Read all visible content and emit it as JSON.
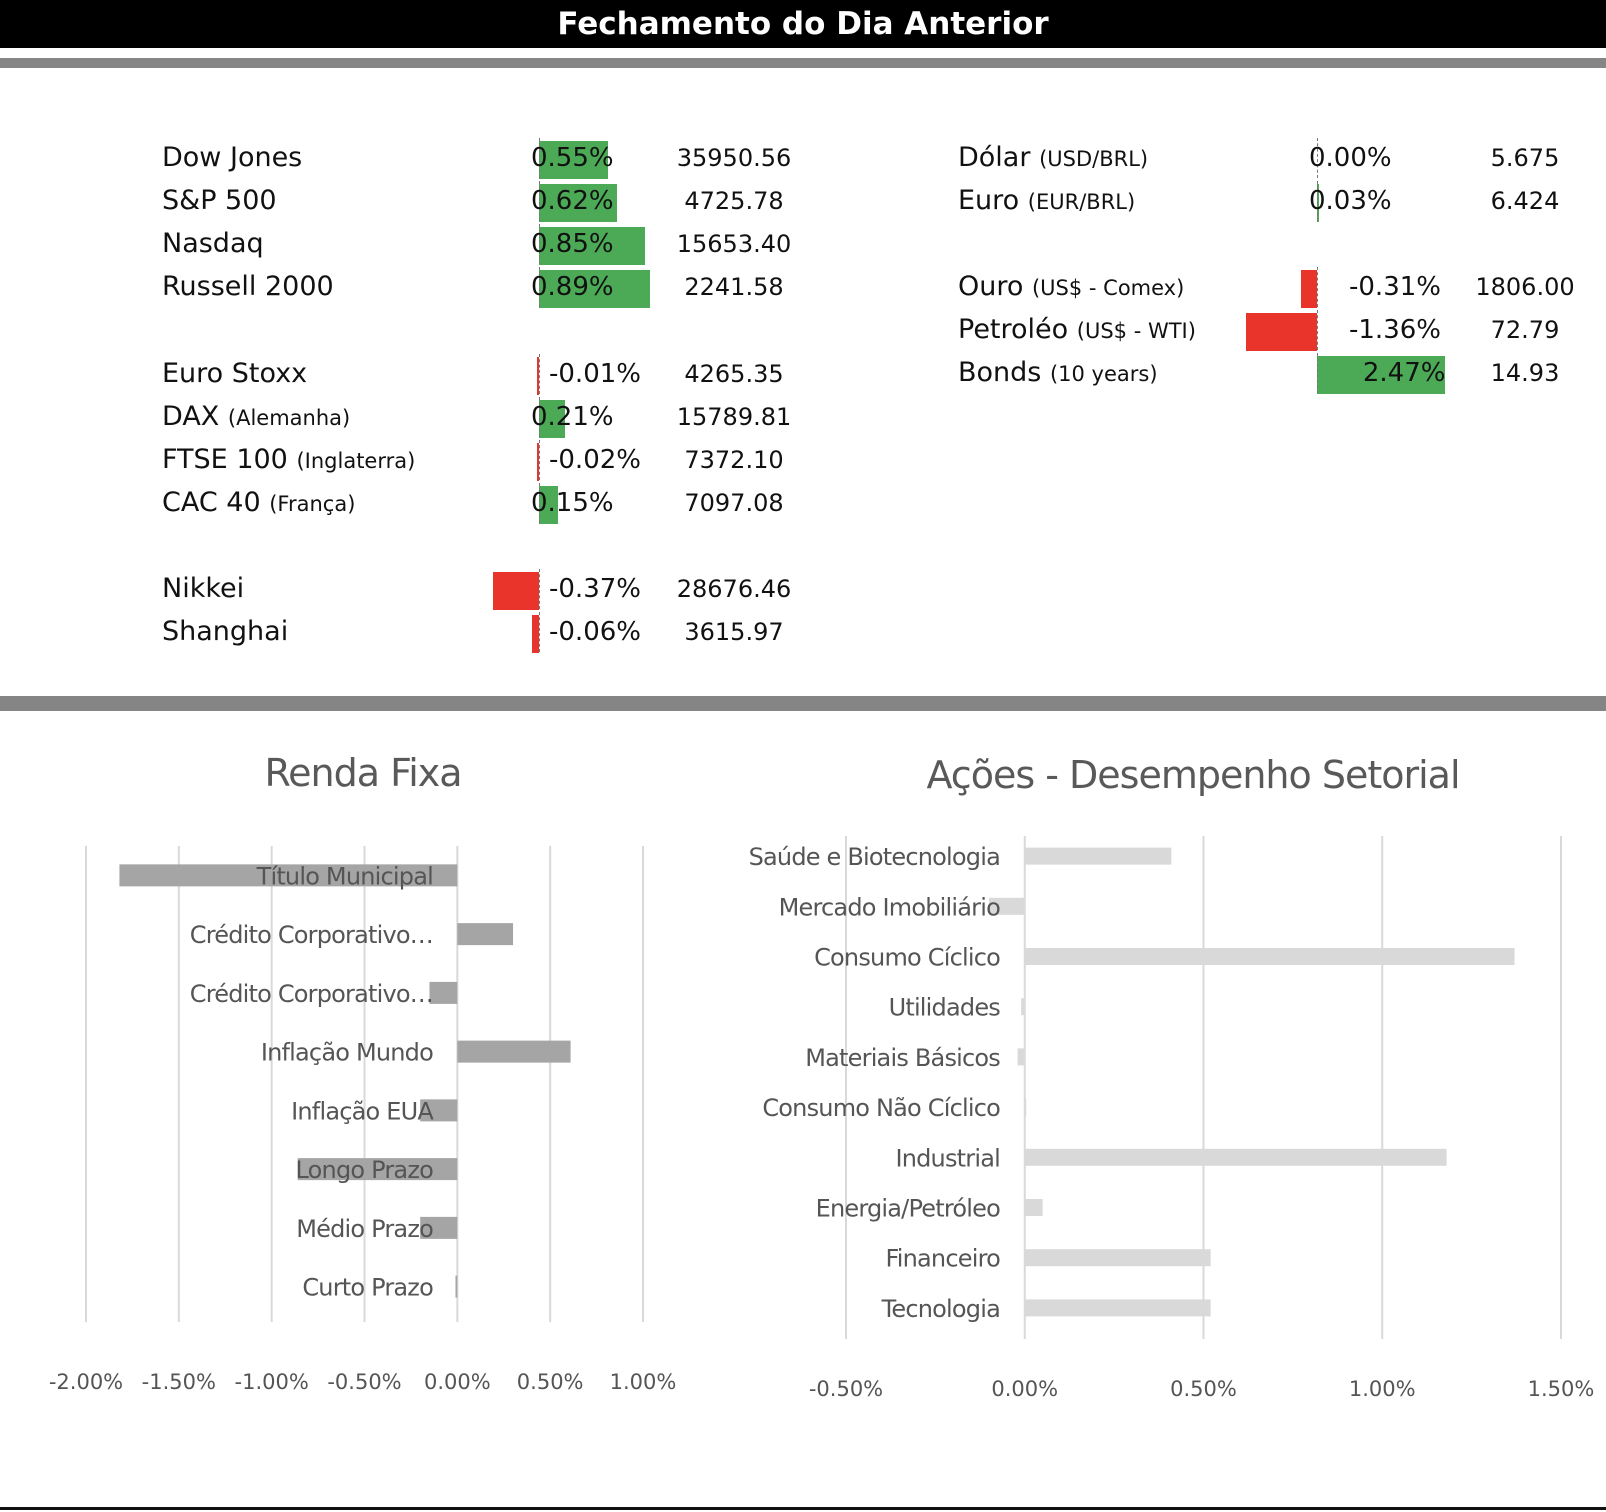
{
  "header": {
    "title": "Fechamento do Dia Anterior"
  },
  "colors": {
    "positive": "#4caa57",
    "negative": "#e8342a",
    "renda_bar": "#a5a5a5",
    "setor_bar": "#d9d9d9",
    "grid": "#d9d9d9",
    "axis_text": "#555555",
    "title_text": "#595959"
  },
  "markets_left": [
    {
      "name": "Dow Jones",
      "sub": "",
      "change_label": "0.55%",
      "change": 0.55,
      "value": "35950.56"
    },
    {
      "name": "S&P 500",
      "sub": "",
      "change_label": "0.62%",
      "change": 0.62,
      "value": "4725.78"
    },
    {
      "name": "Nasdaq",
      "sub": "",
      "change_label": "0.85%",
      "change": 0.85,
      "value": "15653.40"
    },
    {
      "name": "Russell 2000",
      "sub": "",
      "change_label": "0.89%",
      "change": 0.89,
      "value": "2241.58"
    },
    {
      "name": "Euro Stoxx",
      "sub": "",
      "change_label": "-0.01%",
      "change": -0.01,
      "value": "4265.35"
    },
    {
      "name": "DAX",
      "sub": "(Alemanha)",
      "change_label": "0.21%",
      "change": 0.21,
      "value": "15789.81"
    },
    {
      "name": "FTSE 100",
      "sub": "(Inglaterra)",
      "change_label": "-0.02%",
      "change": -0.02,
      "value": "7372.10"
    },
    {
      "name": "CAC 40",
      "sub": "(França)",
      "change_label": "0.15%",
      "change": 0.15,
      "value": "7097.08"
    },
    {
      "name": "Nikkei",
      "sub": "",
      "change_label": "-0.37%",
      "change": -0.37,
      "value": "28676.46"
    },
    {
      "name": "Shanghai",
      "sub": "",
      "change_label": "-0.06%",
      "change": -0.06,
      "value": "3615.97"
    }
  ],
  "markets_right": [
    {
      "name": "Dólar",
      "sub": "(USD/BRL)",
      "change_label": "0.00%",
      "change": 0.0,
      "value": "5.675"
    },
    {
      "name": "Euro",
      "sub": "(EUR/BRL)",
      "change_label": "0.03%",
      "change": 0.03,
      "value": "6.424"
    },
    {
      "name": "Ouro",
      "sub": "(US$ - Comex)",
      "change_label": "-0.31%",
      "change": -0.31,
      "value": "1806.00"
    },
    {
      "name": "Petroléo",
      "sub": "(US$ - WTI)",
      "change_label": "-1.36%",
      "change": -1.36,
      "value": "72.79"
    },
    {
      "name": "Bonds",
      "sub": "(10 years)",
      "change_label": "2.47%",
      "change": 2.47,
      "value": "14.93"
    }
  ],
  "chart_data": [
    {
      "type": "bar",
      "orientation": "horizontal",
      "title": "Renda Fixa",
      "categories": [
        "Título Municipal",
        "Crédito Corporativo…",
        "Crédito Corporativo…",
        "Inflação Mundo",
        "Inflação EUA",
        "Longo Prazo",
        "Médio Prazo",
        "Curto Prazo"
      ],
      "values": [
        -1.82,
        0.3,
        -0.15,
        0.61,
        -0.2,
        -0.86,
        -0.2,
        -0.01
      ],
      "xlim": [
        -2.0,
        1.0
      ],
      "xticks": [
        "-2.00%",
        "-1.50%",
        "-1.00%",
        "-0.50%",
        "0.00%",
        "0.50%",
        "1.00%"
      ],
      "grid": true
    },
    {
      "type": "bar",
      "orientation": "horizontal",
      "title": "Ações - Desempenho Setorial",
      "categories": [
        "Saúde e Biotecnologia",
        "Mercado Imobiliário",
        "Consumo Cíclico",
        "Utilidades",
        "Materiais Básicos",
        "Consumo Não Cíclico",
        "Industrial",
        "Energia/Petróleo",
        "Financeiro",
        "Tecnologia"
      ],
      "values": [
        0.41,
        -0.1,
        1.37,
        -0.01,
        -0.02,
        0.0,
        1.18,
        0.05,
        0.52,
        0.52
      ],
      "xlim": [
        -0.5,
        1.5
      ],
      "xticks": [
        "-0.50%",
        "0.00%",
        "0.50%",
        "1.00%",
        "1.50%"
      ],
      "grid": true
    }
  ]
}
